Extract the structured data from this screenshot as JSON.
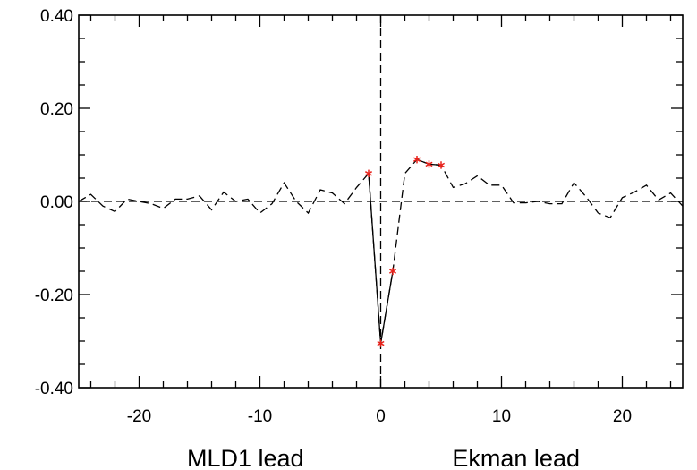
{
  "chart_data": {
    "type": "line",
    "title": "",
    "xlabel_left": "MLD1 lead",
    "xlabel_right": "Ekman lead",
    "ylabel": "",
    "xlim": [
      -25,
      25
    ],
    "ylim": [
      -0.4,
      0.4
    ],
    "x_ticks": [
      -20,
      -10,
      0,
      10,
      20
    ],
    "y_ticks": [
      -0.4,
      -0.2,
      0.0,
      0.2,
      0.4
    ],
    "x_tick_labels": [
      "-20",
      "-10",
      "0",
      "10",
      "20"
    ],
    "y_tick_labels": [
      "-0.40",
      "-0.20",
      "0.00",
      "0.20",
      "0.40"
    ],
    "reference_lines": {
      "horizontal_y": 0,
      "vertical_x": 0,
      "style": "dashed"
    },
    "grid": false,
    "series": [
      {
        "style": "dashed",
        "color": "#000000",
        "x": [
          -25,
          -24,
          -23,
          -22,
          -21,
          -20,
          -19,
          -18,
          -17,
          -16,
          -15,
          -14,
          -13,
          -12,
          -11,
          -10,
          -9,
          -8,
          -7,
          -6,
          -5,
          -4,
          -3,
          -2,
          -1,
          0,
          1,
          2,
          3,
          4,
          5,
          6,
          7,
          8,
          9,
          10,
          11,
          12,
          13,
          14,
          15,
          16,
          17,
          18,
          19,
          20,
          21,
          22,
          23,
          24,
          25
        ],
        "values": [
          0.0,
          0.015,
          -0.01,
          -0.022,
          0.005,
          0.0,
          -0.005,
          -0.015,
          0.005,
          0.005,
          0.012,
          -0.018,
          0.02,
          0.0,
          0.005,
          -0.025,
          -0.005,
          0.04,
          0.0,
          -0.025,
          0.025,
          0.018,
          -0.005,
          0.03,
          0.06,
          -0.305,
          -0.15,
          0.06,
          0.09,
          0.08,
          0.078,
          0.03,
          0.038,
          0.055,
          0.035,
          0.035,
          -0.003,
          -0.003,
          0.0,
          -0.005,
          -0.005,
          0.04,
          0.01,
          -0.025,
          -0.035,
          0.008,
          0.02,
          0.035,
          0.003,
          0.018,
          -0.01
        ]
      },
      {
        "style": "solid",
        "color": "#000000",
        "segments": [
          {
            "x": [
              -1,
              0,
              1
            ],
            "values": [
              0.06,
              -0.305,
              -0.15
            ]
          },
          {
            "x": [
              3,
              4,
              5
            ],
            "values": [
              0.09,
              0.08,
              0.078
            ]
          }
        ]
      }
    ],
    "markers": {
      "symbol": "asterisk",
      "color": "#e8231c",
      "x": [
        -1,
        0,
        1,
        3,
        4,
        5
      ],
      "values": [
        0.06,
        -0.305,
        -0.15,
        0.09,
        0.08,
        0.078
      ]
    }
  }
}
